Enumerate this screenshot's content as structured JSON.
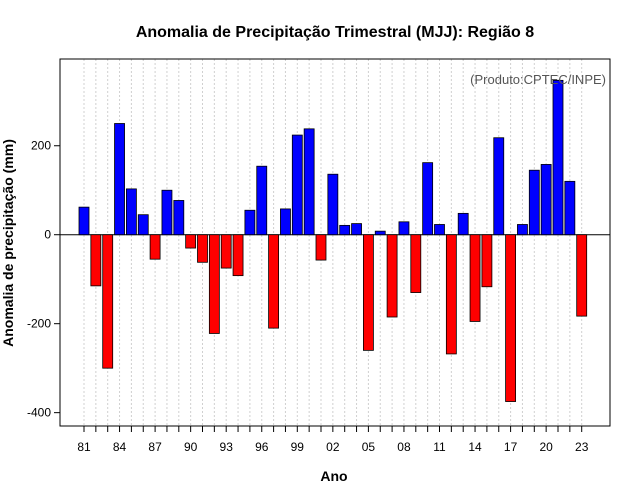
{
  "chart_data": {
    "type": "bar",
    "title": "Anomalia de Precipitação Trimestral (MJJ): Região 8",
    "xlabel": "Ano",
    "ylabel": "Anomalia de precipitação (mm)",
    "credit": "(Produto:CPTEC/INPE)",
    "ylim": [
      -430,
      395
    ],
    "y_ticks": [
      -400,
      -200,
      0,
      200
    ],
    "x_tick_labels": [
      "81",
      "84",
      "87",
      "90",
      "93",
      "96",
      "99",
      "02",
      "05",
      "08",
      "11",
      "14",
      "17",
      "20",
      "23"
    ],
    "years": [
      1981,
      1982,
      1983,
      1984,
      1985,
      1986,
      1987,
      1988,
      1989,
      1990,
      1991,
      1992,
      1993,
      1994,
      1995,
      1996,
      1997,
      1998,
      1999,
      2000,
      2001,
      2002,
      2003,
      2004,
      2005,
      2006,
      2007,
      2008,
      2009,
      2010,
      2011,
      2012,
      2013,
      2014,
      2015,
      2016,
      2017,
      2018,
      2019,
      2020,
      2021,
      2022,
      2023
    ],
    "values": [
      62,
      -115,
      -300,
      250,
      103,
      45,
      -55,
      100,
      77,
      -30,
      -62,
      -222,
      -75,
      -92,
      55,
      154,
      -210,
      58,
      224,
      238,
      -57,
      136,
      21,
      25,
      -260,
      8,
      -185,
      29,
      -130,
      162,
      23,
      -268,
      48,
      -195,
      -117,
      218,
      -375,
      23,
      145,
      158,
      347,
      120,
      -183
    ],
    "positive_color": "#0000ff",
    "negative_color": "#ff0000",
    "grid": true
  }
}
